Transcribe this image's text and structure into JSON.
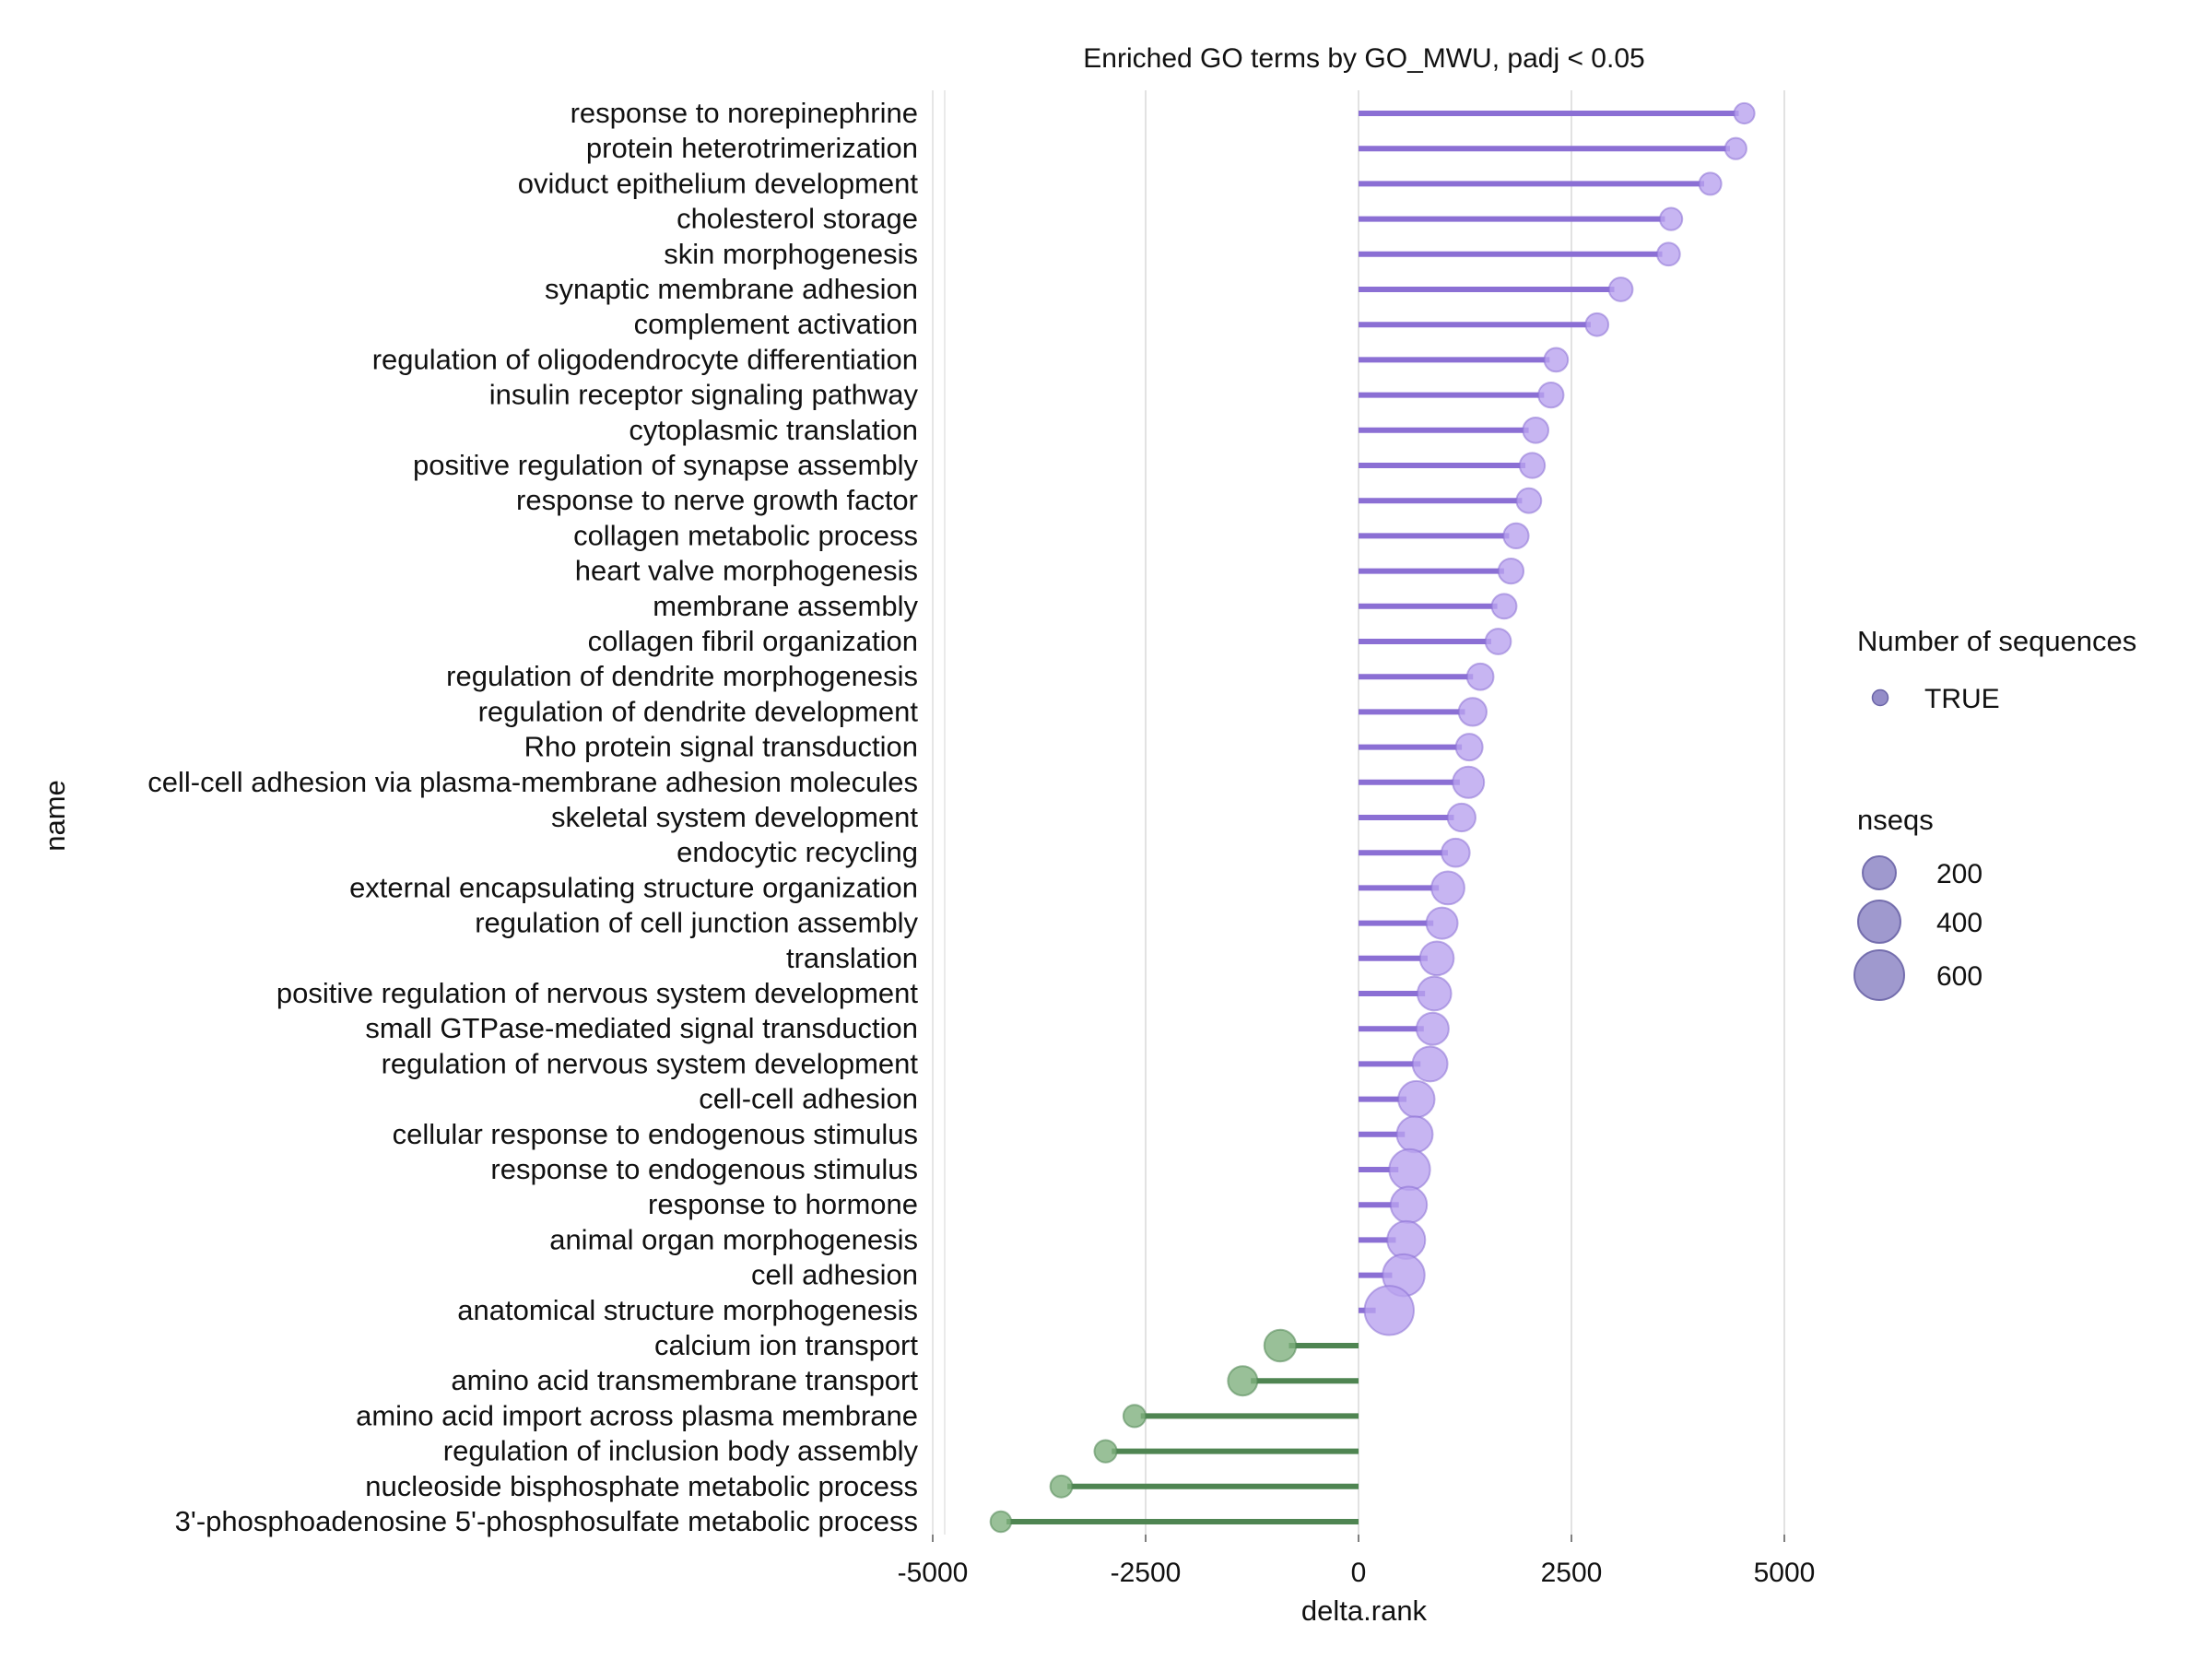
{
  "chart_data": {
    "type": "lollipop",
    "title": "Enriched GO terms by GO_MWU, padj < 0.05",
    "xlabel": "delta.rank",
    "ylabel": "name",
    "xlim": [
      -5000,
      5000
    ],
    "x_ticks": [
      -5000,
      -2500,
      0,
      2500,
      5000
    ],
    "x_tick_labels": [
      "-5000",
      "-2500",
      "0",
      "2500",
      "5000"
    ],
    "grid": "vertical",
    "colors": {
      "positive_line": "#8b6fd4",
      "positive_point": "#b9a2ef",
      "negative_line": "#4f8552",
      "negative_point": "#7fb07e",
      "legend_point": "#8e87c5",
      "grid": "#d9d9d9"
    },
    "legend_color": {
      "title": "Number of sequences",
      "label": "TRUE"
    },
    "legend_size": {
      "title": "nseqs",
      "entries": [
        {
          "label": "200",
          "value": 200
        },
        {
          "label": "400",
          "value": 400
        },
        {
          "label": "600",
          "value": 600
        }
      ]
    },
    "terms": [
      {
        "name": "response to norepinephrine",
        "delta_rank": 4530,
        "nseqs": 22
      },
      {
        "name": "protein heterotrimerization",
        "delta_rank": 4430,
        "nseqs": 30
      },
      {
        "name": "oviduct epithelium development",
        "delta_rank": 4130,
        "nseqs": 38
      },
      {
        "name": "cholesterol storage",
        "delta_rank": 3670,
        "nseqs": 40
      },
      {
        "name": "skin morphogenesis",
        "delta_rank": 3640,
        "nseqs": 45
      },
      {
        "name": "synaptic membrane adhesion",
        "delta_rank": 3080,
        "nseqs": 55
      },
      {
        "name": "complement activation",
        "delta_rank": 2800,
        "nseqs": 45
      },
      {
        "name": "regulation of oligodendrocyte differentiation",
        "delta_rank": 2320,
        "nseqs": 55
      },
      {
        "name": "insulin receptor signaling pathway",
        "delta_rank": 2260,
        "nseqs": 75
      },
      {
        "name": "cytoplasmic translation",
        "delta_rank": 2080,
        "nseqs": 80
      },
      {
        "name": "positive regulation of synapse assembly",
        "delta_rank": 2040,
        "nseqs": 75
      },
      {
        "name": "response to nerve growth factor",
        "delta_rank": 2000,
        "nseqs": 70
      },
      {
        "name": "collagen metabolic process",
        "delta_rank": 1850,
        "nseqs": 75
      },
      {
        "name": "heart valve morphogenesis",
        "delta_rank": 1790,
        "nseqs": 75
      },
      {
        "name": "membrane assembly",
        "delta_rank": 1710,
        "nseqs": 70
      },
      {
        "name": "collagen fibril organization",
        "delta_rank": 1640,
        "nseqs": 80
      },
      {
        "name": "regulation of dendrite morphogenesis",
        "delta_rank": 1430,
        "nseqs": 95
      },
      {
        "name": "regulation of dendrite development",
        "delta_rank": 1340,
        "nseqs": 120
      },
      {
        "name": "Rho protein signal transduction",
        "delta_rank": 1300,
        "nseqs": 100
      },
      {
        "name": "cell-cell adhesion via plasma-membrane adhesion molecules",
        "delta_rank": 1290,
        "nseqs": 190
      },
      {
        "name": "skeletal system development",
        "delta_rank": 1210,
        "nseqs": 120
      },
      {
        "name": "endocytic recycling",
        "delta_rank": 1140,
        "nseqs": 125
      },
      {
        "name": "external encapsulating structure organization",
        "delta_rank": 1050,
        "nseqs": 230
      },
      {
        "name": "regulation of cell junction assembly",
        "delta_rank": 980,
        "nseqs": 190
      },
      {
        "name": "translation",
        "delta_rank": 920,
        "nseqs": 250
      },
      {
        "name": "positive regulation of nervous system development",
        "delta_rank": 890,
        "nseqs": 250
      },
      {
        "name": "small GTPase-mediated signal transduction",
        "delta_rank": 870,
        "nseqs": 210
      },
      {
        "name": "regulation of nervous system development",
        "delta_rank": 840,
        "nseqs": 280
      },
      {
        "name": "cell-cell adhesion",
        "delta_rank": 680,
        "nseqs": 320
      },
      {
        "name": "cellular response to endogenous stimulus",
        "delta_rank": 660,
        "nseqs": 310
      },
      {
        "name": "response to endogenous stimulus",
        "delta_rank": 600,
        "nseqs": 470
      },
      {
        "name": "response to hormone",
        "delta_rank": 590,
        "nseqs": 320
      },
      {
        "name": "animal organ morphogenesis",
        "delta_rank": 560,
        "nseqs": 370
      },
      {
        "name": "cell adhesion",
        "delta_rank": 530,
        "nseqs": 510
      },
      {
        "name": "anatomical structure morphogenesis",
        "delta_rank": 360,
        "nseqs": 820
      },
      {
        "name": "calcium ion transport",
        "delta_rank": -920,
        "nseqs": 200
      },
      {
        "name": "amino acid transmembrane transport",
        "delta_rank": -1360,
        "nseqs": 150
      },
      {
        "name": "amino acid import across plasma membrane",
        "delta_rank": -2630,
        "nseqs": 40
      },
      {
        "name": "regulation of inclusion body assembly",
        "delta_rank": -2970,
        "nseqs": 40
      },
      {
        "name": "nucleoside bisphosphate metabolic process",
        "delta_rank": -3490,
        "nseqs": 36
      },
      {
        "name": "3'-phosphoadenosine 5'-phosphosulfate metabolic process",
        "delta_rank": -4200,
        "nseqs": 25
      }
    ]
  }
}
